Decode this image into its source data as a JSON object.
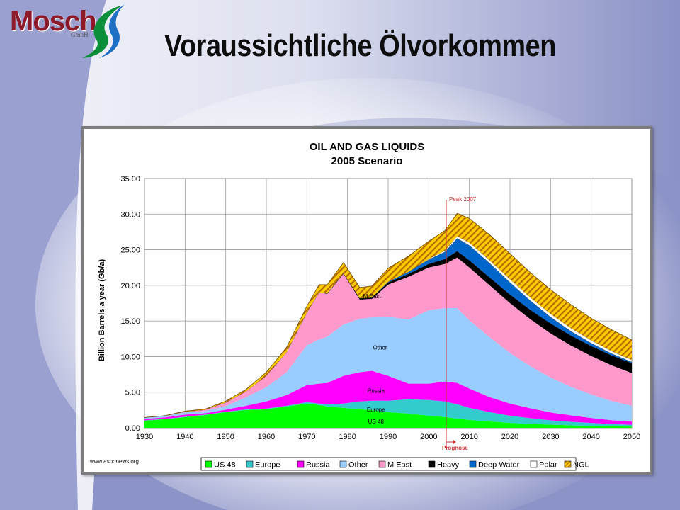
{
  "header": {
    "logo_text": "Mosch",
    "logo_subtext": "GmbH",
    "title": "Voraussichtliche Ölvorkommen"
  },
  "colors": {
    "background_blue": "#8c93c7",
    "US 48": "#00ff00",
    "Europe": "#33cccc",
    "Russia": "#ff00ff",
    "Other": "#99ccff",
    "M East": "#ff99cc",
    "Heavy": "#000000",
    "Deep Water": "#0066cc",
    "Polar": "#ffffff",
    "NGL": "#ffcc00",
    "NGL_hatch": "#b36b00",
    "peak_line": "#cc3333"
  },
  "chart_data": {
    "type": "area",
    "title": "OIL AND GAS LIQUIDS",
    "subtitle": "2005 Scenario",
    "xlabel": "",
    "ylabel": "Billion Barrels a year (Gb/a)",
    "xlim": [
      1930,
      2050
    ],
    "ylim": [
      0,
      35
    ],
    "x_ticks": [
      "1930",
      "1940",
      "1950",
      "1960",
      "1970",
      "1980",
      "1990",
      "2000",
      "2010",
      "2020",
      "2030",
      "2040",
      "2050"
    ],
    "y_ticks": [
      "0.00",
      "5.00",
      "10.00",
      "15.00",
      "20.00",
      "25.00",
      "30.00",
      "35.00"
    ],
    "grid": true,
    "stacked": true,
    "legend_position": "bottom",
    "x": [
      1930,
      1935,
      1940,
      1945,
      1950,
      1955,
      1960,
      1965,
      1970,
      1973,
      1975,
      1979,
      1983,
      1986,
      1990,
      1995,
      2000,
      2004,
      2007,
      2010,
      2015,
      2020,
      2025,
      2030,
      2035,
      2040,
      2045,
      2050
    ],
    "series": [
      {
        "name": "US 48",
        "values": [
          1.0,
          1.2,
          1.5,
          1.8,
          2.2,
          2.5,
          2.6,
          3.0,
          3.4,
          3.2,
          3.0,
          2.8,
          2.6,
          2.5,
          2.2,
          2.0,
          1.7,
          1.5,
          1.3,
          1.1,
          0.9,
          0.7,
          0.55,
          0.45,
          0.35,
          0.28,
          0.22,
          0.18
        ]
      },
      {
        "name": "Europe",
        "values": [
          0.05,
          0.05,
          0.05,
          0.05,
          0.05,
          0.1,
          0.1,
          0.1,
          0.2,
          0.2,
          0.3,
          0.6,
          1.1,
          1.3,
          1.6,
          2.0,
          2.2,
          2.2,
          2.0,
          1.7,
          1.3,
          1.0,
          0.8,
          0.6,
          0.5,
          0.4,
          0.3,
          0.25
        ]
      },
      {
        "name": "Russia",
        "values": [
          0.2,
          0.2,
          0.3,
          0.2,
          0.3,
          0.5,
          1.0,
          1.5,
          2.4,
          2.8,
          3.0,
          3.9,
          4.1,
          4.2,
          3.5,
          2.2,
          2.3,
          2.8,
          3.0,
          2.7,
          2.1,
          1.7,
          1.4,
          1.1,
          0.9,
          0.7,
          0.55,
          0.45
        ]
      },
      {
        "name": "Other",
        "values": [
          0.2,
          0.2,
          0.3,
          0.3,
          0.5,
          1.2,
          2.0,
          3.2,
          5.6,
          6.2,
          6.5,
          7.2,
          7.5,
          7.5,
          8.3,
          9.0,
          10.3,
          10.3,
          10.5,
          9.6,
          8.4,
          7.1,
          5.9,
          4.9,
          4.0,
          3.3,
          2.7,
          2.2
        ]
      },
      {
        "name": "M East",
        "values": [
          0.0,
          0.05,
          0.1,
          0.2,
          0.5,
          0.8,
          1.6,
          2.8,
          4.6,
          6.6,
          6.0,
          7.1,
          2.7,
          2.6,
          4.5,
          6.0,
          6.0,
          6.2,
          7.1,
          7.4,
          7.3,
          7.0,
          6.6,
          6.2,
          5.8,
          5.4,
          5.0,
          4.6
        ]
      },
      {
        "name": "Heavy",
        "values": [
          0.0,
          0.0,
          0.0,
          0.0,
          0.0,
          0.0,
          0.0,
          0.0,
          0.0,
          0.0,
          0.1,
          0.1,
          0.2,
          0.2,
          0.3,
          0.4,
          0.5,
          0.7,
          0.9,
          1.0,
          1.1,
          1.2,
          1.3,
          1.4,
          1.4,
          1.4,
          1.4,
          1.4
        ]
      },
      {
        "name": "Deep Water",
        "values": [
          0.0,
          0.0,
          0.0,
          0.0,
          0.0,
          0.0,
          0.0,
          0.0,
          0.0,
          0.0,
          0.0,
          0.0,
          0.0,
          0.0,
          0.1,
          0.3,
          0.6,
          1.0,
          1.8,
          2.1,
          2.0,
          1.7,
          1.3,
          0.9,
          0.6,
          0.4,
          0.25,
          0.15
        ]
      },
      {
        "name": "Polar",
        "values": [
          0.0,
          0.0,
          0.0,
          0.0,
          0.0,
          0.0,
          0.0,
          0.0,
          0.0,
          0.0,
          0.0,
          0.0,
          0.0,
          0.0,
          0.0,
          0.0,
          0.1,
          0.2,
          0.3,
          0.4,
          0.4,
          0.45,
          0.45,
          0.45,
          0.45,
          0.4,
          0.35,
          0.3
        ]
      },
      {
        "name": "NGL",
        "values": [
          0.0,
          0.0,
          0.1,
          0.1,
          0.2,
          0.3,
          0.5,
          0.7,
          0.9,
          1.1,
          1.2,
          1.5,
          1.5,
          1.6,
          1.9,
          2.2,
          2.5,
          2.8,
          3.2,
          3.4,
          3.6,
          3.6,
          3.5,
          3.4,
          3.3,
          3.1,
          3.0,
          2.8
        ]
      }
    ],
    "inline_labels": [
      {
        "text": "M East",
        "x": 1986,
        "y": 18.5
      },
      {
        "text": "Other",
        "x": 1988,
        "y": 11.3
      },
      {
        "text": "Russia",
        "x": 1987,
        "y": 5.2
      },
      {
        "text": "Europe",
        "x": 1987,
        "y": 2.6
      },
      {
        "text": "US 48",
        "x": 1987,
        "y": 0.9
      }
    ],
    "annotations": [
      {
        "text": "Peak 2007",
        "x": 2004.3,
        "y": 31.8
      },
      {
        "text": "Prognose",
        "x": 2004.3,
        "y": -3.1
      }
    ],
    "peak_marker_x": 2004.3,
    "source_text": "www.asponews.org"
  }
}
